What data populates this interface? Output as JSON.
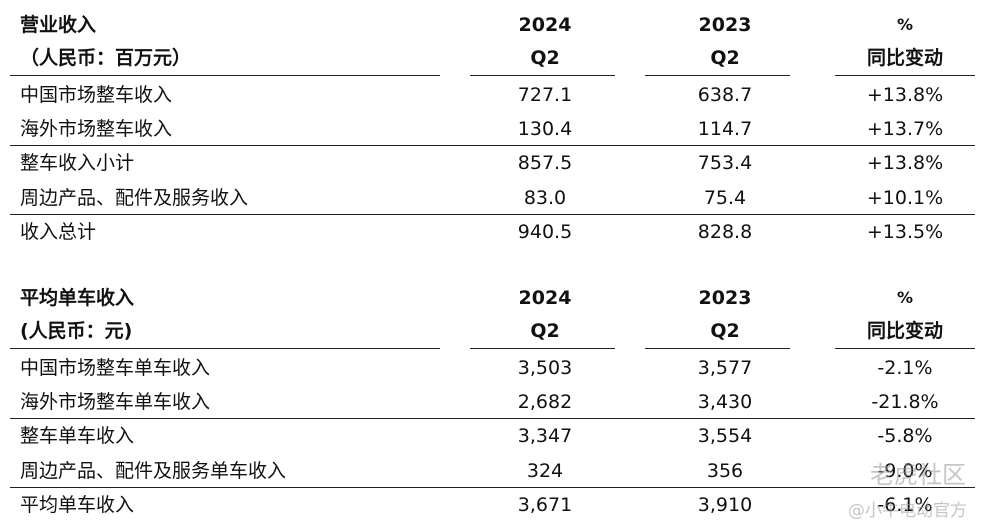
{
  "tables": [
    {
      "title": "营业收入",
      "unit": "（人民币：百万元）",
      "columns": [
        {
          "top": "2024",
          "bottom": "Q2"
        },
        {
          "top": "2023",
          "bottom": "Q2"
        },
        {
          "top": "%",
          "bottom": "同比变动"
        }
      ],
      "rows": [
        [
          "中国市场整车收入",
          "727.1",
          "638.7",
          "+13.8%"
        ],
        [
          "海外市场整车收入",
          "130.4",
          "114.7",
          "+13.7%"
        ],
        [
          "整车收入小计",
          "857.5",
          "753.4",
          "+13.8%"
        ],
        [
          "周边产品、配件及服务收入",
          "83.0",
          "75.4",
          "+10.1%"
        ],
        [
          "收入总计",
          "940.5",
          "828.8",
          "+13.5%"
        ]
      ]
    },
    {
      "title": "平均单车收入",
      "unit": "(人民币：元)",
      "columns": [
        {
          "top": "2024",
          "bottom": "Q2"
        },
        {
          "top": "2023",
          "bottom": "Q2"
        },
        {
          "top": "%",
          "bottom": "同比变动"
        }
      ],
      "rows": [
        [
          "中国市场整车单车收入",
          "3,503",
          "3,577",
          "-2.1%"
        ],
        [
          "海外市场整车单车收入",
          "2,682",
          "3,430",
          "-21.8%"
        ],
        [
          "整车单车收入",
          "3,347",
          "3,554",
          "-5.8%"
        ],
        [
          "周边产品、配件及服务单车收入",
          "324",
          "356",
          "-9.0%"
        ],
        [
          "平均单车收入",
          "3,671",
          "3,910",
          "-6.1%"
        ]
      ]
    }
  ],
  "watermark": {
    "brand": "老虎社区",
    "author": "@小牛电动官方"
  }
}
